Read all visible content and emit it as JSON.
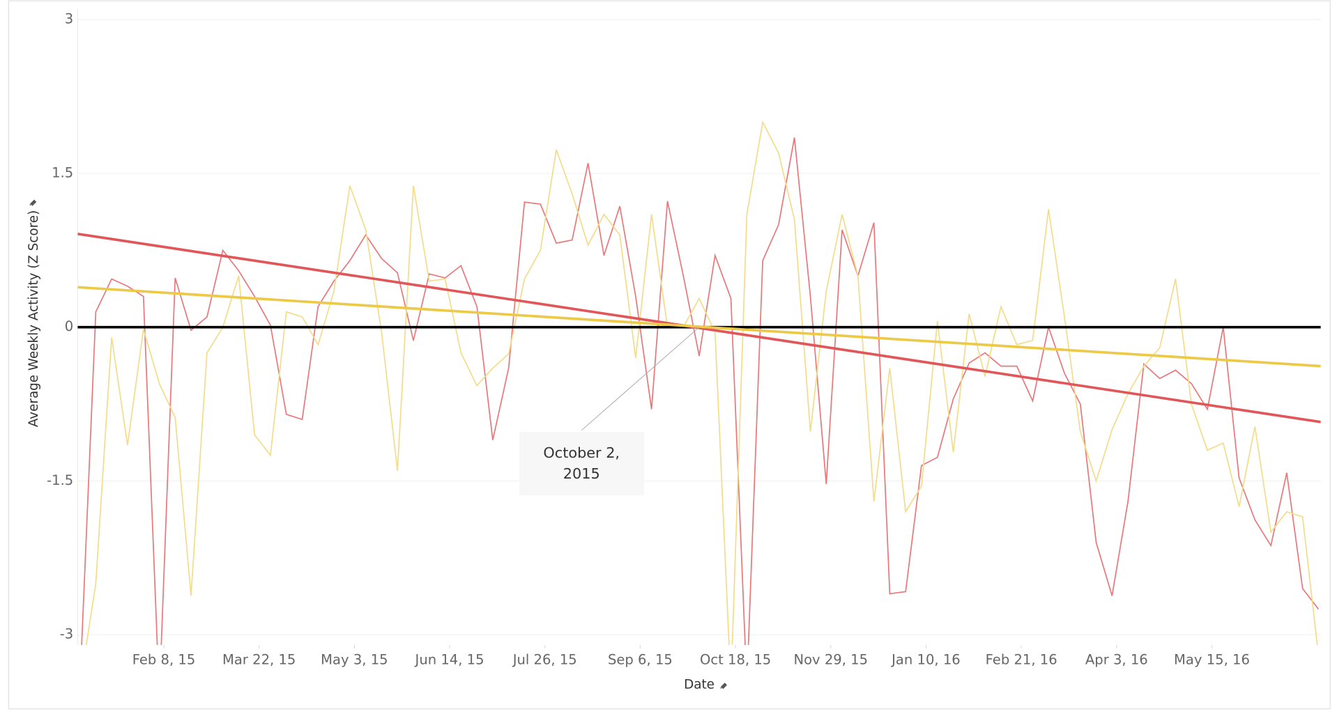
{
  "chart_data": {
    "type": "line",
    "y_label": "Average Weekly Activity (Z Score)",
    "x_label": "Date",
    "x": [
      "2015-01-02",
      "2015-01-09",
      "2015-01-16",
      "2015-01-23",
      "2015-01-30",
      "2015-02-06",
      "2015-02-13",
      "2015-02-20",
      "2015-02-27",
      "2015-03-06",
      "2015-03-13",
      "2015-03-20",
      "2015-03-27",
      "2015-04-03",
      "2015-04-10",
      "2015-04-17",
      "2015-04-24",
      "2015-05-01",
      "2015-05-08",
      "2015-05-15",
      "2015-05-22",
      "2015-05-29",
      "2015-06-05",
      "2015-06-12",
      "2015-06-19",
      "2015-06-26",
      "2015-07-03",
      "2015-07-10",
      "2015-07-17",
      "2015-07-24",
      "2015-07-31",
      "2015-08-07",
      "2015-08-14",
      "2015-08-21",
      "2015-08-28",
      "2015-09-04",
      "2015-09-11",
      "2015-09-18",
      "2015-09-25",
      "2015-10-02",
      "2015-10-09",
      "2015-10-16",
      "2015-10-23",
      "2015-10-30",
      "2015-11-06",
      "2015-11-13",
      "2015-11-20",
      "2015-11-27",
      "2015-12-04",
      "2015-12-11",
      "2015-12-18",
      "2015-12-25",
      "2016-01-01",
      "2016-01-08",
      "2016-01-15",
      "2016-01-22",
      "2016-01-29",
      "2016-02-05",
      "2016-02-12",
      "2016-02-19",
      "2016-02-26",
      "2016-03-04",
      "2016-03-11",
      "2016-03-18",
      "2016-03-25",
      "2016-04-01",
      "2016-04-08",
      "2016-04-15",
      "2016-04-22",
      "2016-04-29",
      "2016-05-06",
      "2016-05-13",
      "2016-05-20",
      "2016-05-27",
      "2016-06-03",
      "2016-06-10",
      "2016-06-17",
      "2016-06-24",
      "2016-07-01"
    ],
    "series": [
      {
        "color": "#e8787b",
        "values": [
          -3.5,
          0.15,
          0.47,
          0.4,
          0.3,
          -3.6,
          0.48,
          -0.03,
          0.1,
          0.75,
          0.55,
          0.3,
          0.02,
          -0.85,
          -0.9,
          0.2,
          0.45,
          0.65,
          0.9,
          0.67,
          0.53,
          -0.13,
          0.52,
          0.48,
          0.6,
          0.2,
          -1.1,
          -0.4,
          1.22,
          1.2,
          0.82,
          0.85,
          1.6,
          0.7,
          1.18,
          0.3,
          -0.8,
          1.23,
          0.5,
          -0.28,
          0.7,
          0.28,
          -3.5,
          0.65,
          1.0,
          1.85,
          0.3,
          -1.53,
          0.95,
          0.5,
          1.02,
          -2.6,
          -2.58,
          -1.35,
          -1.27,
          -0.7,
          -0.35,
          -0.25,
          -0.38,
          -0.38,
          -0.72,
          0.0,
          -0.45,
          -0.75,
          -2.1,
          -2.62,
          -1.7,
          -0.36,
          -0.5,
          -0.42,
          -0.55,
          -0.8,
          0.0,
          -1.47,
          -1.88,
          -2.13,
          -1.42,
          -2.55,
          -2.75
        ],
        "trend_color": "#e15759",
        "trend": [
          0.91,
          -0.925
        ]
      },
      {
        "color": "#f3dc8a",
        "values": [
          -3.5,
          -2.5,
          -0.1,
          -1.15,
          -0.02,
          -0.55,
          -0.88,
          -2.62,
          -0.25,
          0.0,
          0.5,
          -1.05,
          -1.25,
          0.15,
          0.1,
          -0.17,
          0.35,
          1.38,
          0.95,
          -0.05,
          -1.4,
          1.38,
          0.45,
          0.47,
          -0.25,
          -0.57,
          -0.4,
          -0.26,
          0.47,
          0.75,
          1.73,
          1.3,
          0.8,
          1.1,
          0.9,
          -0.3,
          1.1,
          0.0,
          0.0,
          0.28,
          -0.05,
          -3.5,
          1.1,
          2.0,
          1.7,
          1.05,
          -1.02,
          0.35,
          1.1,
          0.5,
          -1.7,
          -0.4,
          -1.8,
          -1.55,
          0.06,
          -1.22,
          0.13,
          -0.48,
          0.2,
          -0.17,
          -0.13,
          1.15,
          0.1,
          -1.02,
          -1.5,
          -1.0,
          -0.65,
          -0.38,
          -0.2,
          0.47,
          -0.75,
          -1.2,
          -1.13,
          -1.75,
          -0.97,
          -2.0,
          -1.8,
          -1.85,
          -3.2
        ],
        "trend_color": "#edc948",
        "trend": [
          0.39,
          -0.38
        ]
      }
    ],
    "xlim": [
      "2015-01-01",
      "2016-07-02"
    ],
    "xticks": [
      {
        "value": "2015-02-08",
        "label": "Feb 8, 15"
      },
      {
        "value": "2015-03-22",
        "label": "Mar 22, 15"
      },
      {
        "value": "2015-05-03",
        "label": "May 3, 15"
      },
      {
        "value": "2015-06-14",
        "label": "Jun 14, 15"
      },
      {
        "value": "2015-07-26",
        "label": "Jul 26, 15"
      },
      {
        "value": "2015-09-06",
        "label": "Sep 6, 15"
      },
      {
        "value": "2015-10-18",
        "label": "Oct 18, 15"
      },
      {
        "value": "2015-11-29",
        "label": "Nov 29, 15"
      },
      {
        "value": "2016-01-10",
        "label": "Jan 10, 16"
      },
      {
        "value": "2016-02-21",
        "label": "Feb 21, 16"
      },
      {
        "value": "2016-04-03",
        "label": "Apr 3, 16"
      },
      {
        "value": "2016-05-15",
        "label": "May 15, 16"
      }
    ],
    "ylim": [
      -3.1,
      3.1
    ],
    "yticks": [
      -3,
      -1.5,
      0,
      1.5,
      3
    ],
    "grid": true,
    "annotation": {
      "text": "October 2, 2015",
      "x": "2015-10-02",
      "y": 0
    }
  }
}
